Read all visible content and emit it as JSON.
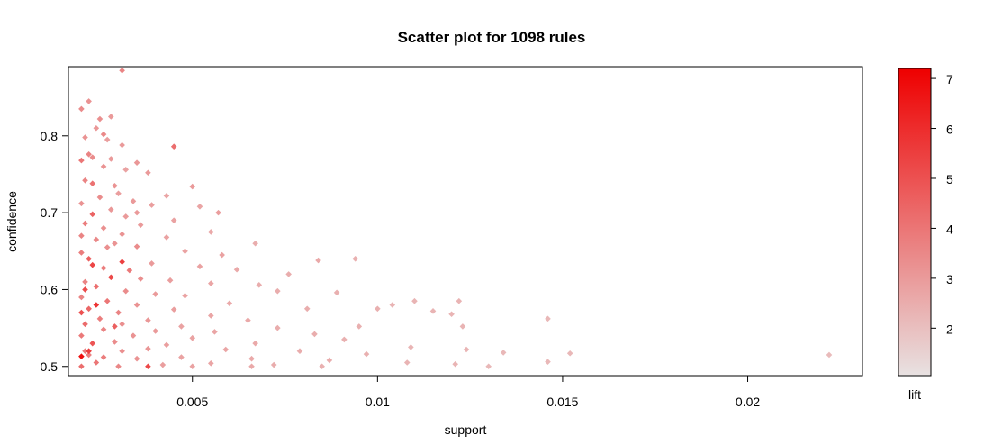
{
  "chart_data": {
    "type": "scatter",
    "title": "Scatter plot for 1098 rules",
    "xlabel": "support",
    "ylabel": "confidence",
    "xlim": [
      0.00165,
      0.0231
    ],
    "ylim": [
      0.488,
      0.89
    ],
    "x_ticks": [
      0.005,
      0.01,
      0.015,
      0.02
    ],
    "x_tick_labels": [
      "0.005",
      "0.01",
      "0.015",
      "0.02"
    ],
    "y_ticks": [
      0.5,
      0.6,
      0.7,
      0.8
    ],
    "y_tick_labels": [
      "0.5",
      "0.6",
      "0.7",
      "0.8"
    ],
    "color_scale": {
      "label": "lift",
      "range": [
        1.05,
        7.2
      ],
      "ticks": [
        2,
        3,
        4,
        5,
        6,
        7
      ],
      "tick_labels": [
        "2",
        "3",
        "4",
        "5",
        "6",
        "7"
      ],
      "low_color": "#e8e2e2",
      "high_color": "#ee0000"
    },
    "points": [
      [
        0.0031,
        0.885,
        3.6
      ],
      [
        0.0022,
        0.845,
        3.2
      ],
      [
        0.002,
        0.835,
        3.4
      ],
      [
        0.0028,
        0.825,
        3.0
      ],
      [
        0.0025,
        0.822,
        3.3
      ],
      [
        0.0024,
        0.81,
        3.1
      ],
      [
        0.0026,
        0.802,
        3.5
      ],
      [
        0.0021,
        0.798,
        3.2
      ],
      [
        0.0027,
        0.795,
        2.9
      ],
      [
        0.0031,
        0.788,
        3.0
      ],
      [
        0.0045,
        0.786,
        4.2
      ],
      [
        0.0022,
        0.776,
        3.6
      ],
      [
        0.0023,
        0.772,
        3.4
      ],
      [
        0.0028,
        0.77,
        3.0
      ],
      [
        0.002,
        0.768,
        4.0
      ],
      [
        0.0035,
        0.765,
        3.1
      ],
      [
        0.0026,
        0.76,
        3.2
      ],
      [
        0.0032,
        0.756,
        2.8
      ],
      [
        0.0038,
        0.752,
        3.0
      ],
      [
        0.0021,
        0.742,
        3.6
      ],
      [
        0.0023,
        0.738,
        4.1
      ],
      [
        0.0029,
        0.735,
        3.2
      ],
      [
        0.005,
        0.734,
        3.0
      ],
      [
        0.003,
        0.725,
        2.9
      ],
      [
        0.0043,
        0.722,
        2.7
      ],
      [
        0.0025,
        0.72,
        3.4
      ],
      [
        0.0034,
        0.715,
        3.0
      ],
      [
        0.002,
        0.712,
        3.2
      ],
      [
        0.0039,
        0.71,
        2.9
      ],
      [
        0.0052,
        0.708,
        2.7
      ],
      [
        0.0028,
        0.704,
        3.1
      ],
      [
        0.0057,
        0.7,
        2.9
      ],
      [
        0.0023,
        0.698,
        4.5
      ],
      [
        0.0032,
        0.695,
        3.0
      ],
      [
        0.0045,
        0.69,
        2.8
      ],
      [
        0.0021,
        0.686,
        3.8
      ],
      [
        0.0036,
        0.684,
        3.0
      ],
      [
        0.0026,
        0.68,
        3.3
      ],
      [
        0.0055,
        0.675,
        2.6
      ],
      [
        0.0031,
        0.672,
        3.2
      ],
      [
        0.002,
        0.67,
        3.6
      ],
      [
        0.0043,
        0.668,
        2.8
      ],
      [
        0.0067,
        0.66,
        2.5
      ],
      [
        0.0024,
        0.665,
        3.5
      ],
      [
        0.0029,
        0.66,
        3.2
      ],
      [
        0.0035,
        0.656,
        3.4
      ],
      [
        0.0048,
        0.65,
        2.8
      ],
      [
        0.0058,
        0.645,
        2.8
      ],
      [
        0.002,
        0.648,
        3.8
      ],
      [
        0.0084,
        0.638,
        2.6
      ],
      [
        0.0094,
        0.64,
        2.4
      ],
      [
        0.0022,
        0.64,
        4.6
      ],
      [
        0.0031,
        0.636,
        5.5
      ],
      [
        0.0039,
        0.634,
        3.0
      ],
      [
        0.0052,
        0.63,
        2.8
      ],
      [
        0.0026,
        0.628,
        3.8
      ],
      [
        0.0062,
        0.626,
        2.6
      ],
      [
        0.0076,
        0.62,
        2.5
      ],
      [
        0.0028,
        0.616,
        5.2
      ],
      [
        0.0036,
        0.614,
        3.3
      ],
      [
        0.0044,
        0.612,
        2.9
      ],
      [
        0.0055,
        0.608,
        2.7
      ],
      [
        0.0068,
        0.606,
        2.5
      ],
      [
        0.0021,
        0.61,
        3.6
      ],
      [
        0.0024,
        0.604,
        4.2
      ],
      [
        0.0032,
        0.598,
        3.4
      ],
      [
        0.0073,
        0.598,
        2.5
      ],
      [
        0.0089,
        0.596,
        2.4
      ],
      [
        0.004,
        0.594,
        3.0
      ],
      [
        0.0048,
        0.592,
        2.8
      ],
      [
        0.002,
        0.59,
        3.6
      ],
      [
        0.011,
        0.585,
        2.3
      ],
      [
        0.0122,
        0.585,
        2.3
      ],
      [
        0.0104,
        0.58,
        2.3
      ],
      [
        0.0027,
        0.585,
        4.0
      ],
      [
        0.0035,
        0.58,
        3.2
      ],
      [
        0.006,
        0.582,
        2.6
      ],
      [
        0.0081,
        0.575,
        2.5
      ],
      [
        0.01,
        0.575,
        2.4
      ],
      [
        0.0022,
        0.575,
        4.4
      ],
      [
        0.0045,
        0.574,
        2.9
      ],
      [
        0.0115,
        0.572,
        2.3
      ],
      [
        0.002,
        0.57,
        5.0
      ],
      [
        0.003,
        0.57,
        3.6
      ],
      [
        0.012,
        0.568,
        2.3
      ],
      [
        0.0055,
        0.566,
        2.7
      ],
      [
        0.0146,
        0.562,
        2.2
      ],
      [
        0.0025,
        0.562,
        3.8
      ],
      [
        0.0038,
        0.56,
        3.1
      ],
      [
        0.0065,
        0.56,
        2.6
      ],
      [
        0.0021,
        0.555,
        4.3
      ],
      [
        0.0031,
        0.555,
        3.3
      ],
      [
        0.0047,
        0.552,
        2.8
      ],
      [
        0.0095,
        0.552,
        2.4
      ],
      [
        0.0123,
        0.552,
        2.3
      ],
      [
        0.0073,
        0.55,
        2.5
      ],
      [
        0.0026,
        0.548,
        3.6
      ],
      [
        0.004,
        0.546,
        3.0
      ],
      [
        0.0056,
        0.545,
        2.7
      ],
      [
        0.0083,
        0.542,
        2.5
      ],
      [
        0.002,
        0.54,
        3.9
      ],
      [
        0.0034,
        0.54,
        3.2
      ],
      [
        0.0091,
        0.535,
        2.4
      ],
      [
        0.005,
        0.537,
        2.8
      ],
      [
        0.0029,
        0.532,
        3.4
      ],
      [
        0.0023,
        0.53,
        4.9
      ],
      [
        0.0067,
        0.53,
        2.6
      ],
      [
        0.0043,
        0.528,
        2.9
      ],
      [
        0.0109,
        0.525,
        2.3
      ],
      [
        0.0038,
        0.523,
        3.1
      ],
      [
        0.0059,
        0.522,
        2.7
      ],
      [
        0.0124,
        0.522,
        2.3
      ],
      [
        0.0021,
        0.52,
        3.8
      ],
      [
        0.0031,
        0.52,
        3.3
      ],
      [
        0.0079,
        0.52,
        2.5
      ],
      [
        0.0134,
        0.518,
        2.2
      ],
      [
        0.0152,
        0.517,
        2.2
      ],
      [
        0.0097,
        0.516,
        2.4
      ],
      [
        0.0222,
        0.515,
        2.1
      ],
      [
        0.002,
        0.513,
        6.8
      ],
      [
        0.0026,
        0.512,
        3.8
      ],
      [
        0.0047,
        0.512,
        2.8
      ],
      [
        0.0066,
        0.51,
        2.6
      ],
      [
        0.0035,
        0.51,
        3.2
      ],
      [
        0.0087,
        0.508,
        2.5
      ],
      [
        0.0146,
        0.506,
        2.2
      ],
      [
        0.0108,
        0.505,
        2.3
      ],
      [
        0.0024,
        0.505,
        4.0
      ],
      [
        0.0055,
        0.504,
        2.7
      ],
      [
        0.0042,
        0.502,
        2.9
      ],
      [
        0.0072,
        0.502,
        2.5
      ],
      [
        0.0121,
        0.503,
        2.3
      ],
      [
        0.003,
        0.5,
        3.5
      ],
      [
        0.002,
        0.5,
        4.2
      ],
      [
        0.0038,
        0.5,
        5.2
      ],
      [
        0.005,
        0.5,
        2.8
      ],
      [
        0.0085,
        0.5,
        2.4
      ],
      [
        0.013,
        0.5,
        2.2
      ],
      [
        0.0066,
        0.5,
        2.6
      ],
      [
        0.0022,
        0.515,
        3.7
      ],
      [
        0.0024,
        0.58,
        5.8
      ],
      [
        0.0033,
        0.625,
        3.9
      ],
      [
        0.0027,
        0.655,
        3.3
      ],
      [
        0.0035,
        0.7,
        3.0
      ],
      [
        0.0022,
        0.52,
        5.5
      ],
      [
        0.0021,
        0.6,
        5.1
      ],
      [
        0.0023,
        0.632,
        5.3
      ],
      [
        0.0029,
        0.552,
        4.6
      ]
    ]
  }
}
